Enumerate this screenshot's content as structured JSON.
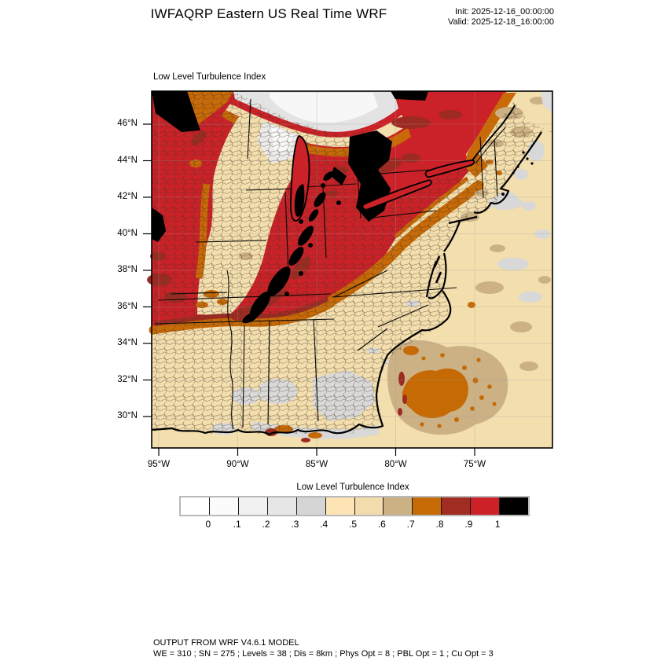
{
  "header": {
    "title": "IWFAQRP Eastern US Real Time WRF",
    "init_label": "Init: 2025-12-16_00:00:00",
    "valid_label": "Valid: 2025-12-18_16:00:00"
  },
  "plot": {
    "field_title": "Low Level Turbulence Index",
    "y_ticks": [
      "46°N",
      "44°N",
      "42°N",
      "40°N",
      "38°N",
      "36°N",
      "34°N",
      "32°N",
      "30°N"
    ],
    "x_ticks": [
      "95°W",
      "90°W",
      "85°W",
      "80°W",
      "75°W"
    ]
  },
  "colorbar": {
    "title": "Low Level Turbulence Index",
    "tick_labels": [
      "0",
      ".1",
      ".2",
      ".3",
      ".4",
      ".5",
      ".6",
      ".7",
      ".8",
      ".9",
      "1"
    ],
    "colors": [
      "#ffffff",
      "#fbfbfb",
      "#f1f1f1",
      "#e6e6e6",
      "#d5d5d5",
      "#fce4b4",
      "#f3dcab",
      "#ccb185",
      "#c66a06",
      "#a02c22",
      "#cb2127",
      "#000000"
    ]
  },
  "footer": {
    "line1": "OUTPUT FROM WRF V4.6.1 MODEL",
    "line2": "WE = 310 ; SN = 275 ; Levels = 38 ; Dis = 8km ; Phys Opt = 8 ; PBL Opt = 1 ; Cu Opt = 3"
  },
  "chart_data": {
    "type": "heatmap",
    "title": "Low Level Turbulence Index",
    "model_header": "IWFAQRP Eastern US Real Time WRF",
    "init_time": "2025-12-16_00:00:00",
    "valid_time": "2025-12-18_16:00:00",
    "x_axis": {
      "ticks": [
        "95°W",
        "90°W",
        "85°W",
        "80°W",
        "75°W"
      ],
      "range_approx_deg_west": [
        95.5,
        70.1
      ]
    },
    "y_axis": {
      "ticks": [
        "46°N",
        "44°N",
        "42°N",
        "40°N",
        "38°N",
        "36°N",
        "34°N",
        "32°N",
        "30°N"
      ],
      "range_approx_deg_north": [
        28.3,
        47.8
      ]
    },
    "levels": [
      0,
      0.1,
      0.2,
      0.3,
      0.4,
      0.5,
      0.6,
      0.7,
      0.8,
      0.9,
      1
    ],
    "level_colors": [
      "#ffffff",
      "#fbfbfb",
      "#f1f1f1",
      "#e6e6e6",
      "#d5d5d5",
      "#fce4b4",
      "#f3dcab",
      "#ccb185",
      "#c66a06",
      "#a02c22",
      "#cb2127",
      "#000000"
    ],
    "legend_position": "bottom",
    "grid": "lat-lon graticule every 2 deg, county and state outlines overlaid",
    "features": [
      "Index 0.9-1 (red) covers the Upper Midwest, Great Lakes, Ohio Valley, southern Ontario/Quebec, New York and Pennsylvania down to Tennessee/Arkansas",
      "Index >1 (black) patches at the northwest map corner, over Lakes Michigan and Huron, a SW-NE streak across Kentucky/Indiana/Ohio, and a strip along the northern map edge",
      "Index 0.4-0.6 (cream) wedge from northern Wisconsin through Iowa, Illinois and Missouri",
      "Index 0.2-0.4 (gray/white) over the Lake Superior region, coastal New England, Georgia/Alabama and the Gulf coast",
      "Index 0.7-0.9 (orange/brick) transition bands along every red boundary, across northern New England, and the Appalachians",
      "Index 0.4-0.7 (cream/tan) across the Southeast, mid-Atlantic and western Atlantic, with an orange-speckled tan patch offshore of the Carolinas"
    ]
  }
}
